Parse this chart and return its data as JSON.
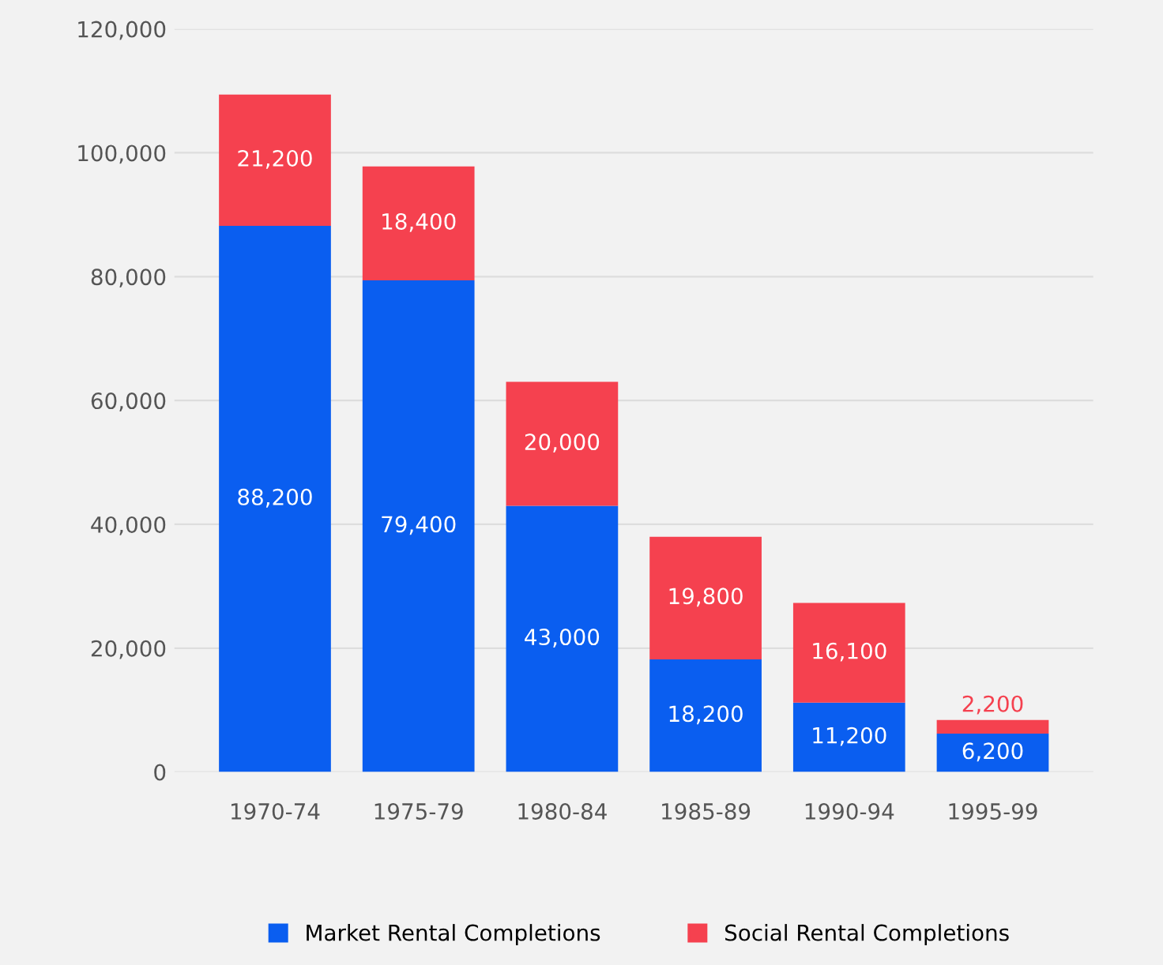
{
  "chart_data": {
    "type": "bar",
    "stacked": true,
    "categories": [
      "1970-74",
      "1975-79",
      "1980-84",
      "1985-89",
      "1990-94",
      "1995-99"
    ],
    "series": [
      {
        "name": "Market Rental Completions",
        "color": "#0a5ef0",
        "values": [
          88200,
          79400,
          43000,
          18200,
          11200,
          6200
        ],
        "value_labels": [
          "88,200",
          "79,400",
          "43,000",
          "18,200",
          "11,200",
          "6,200"
        ]
      },
      {
        "name": "Social Rental Completions",
        "color": "#f5414f",
        "values": [
          21200,
          18400,
          20000,
          19800,
          16100,
          2200
        ],
        "value_labels": [
          "21,200",
          "18,400",
          "20,000",
          "19,800",
          "16,100",
          "2,200"
        ]
      }
    ],
    "ylim": [
      0,
      120000
    ],
    "yticks": [
      {
        "value": 0,
        "label": "0"
      },
      {
        "value": 20000,
        "label": "20,000"
      },
      {
        "value": 40000,
        "label": "40,000"
      },
      {
        "value": 60000,
        "label": "60,000"
      },
      {
        "value": 80000,
        "label": "80,000"
      },
      {
        "value": 100000,
        "label": "100,000"
      },
      {
        "value": 120000,
        "label": "120,000"
      }
    ],
    "grid": "y",
    "legend": "bottom"
  }
}
